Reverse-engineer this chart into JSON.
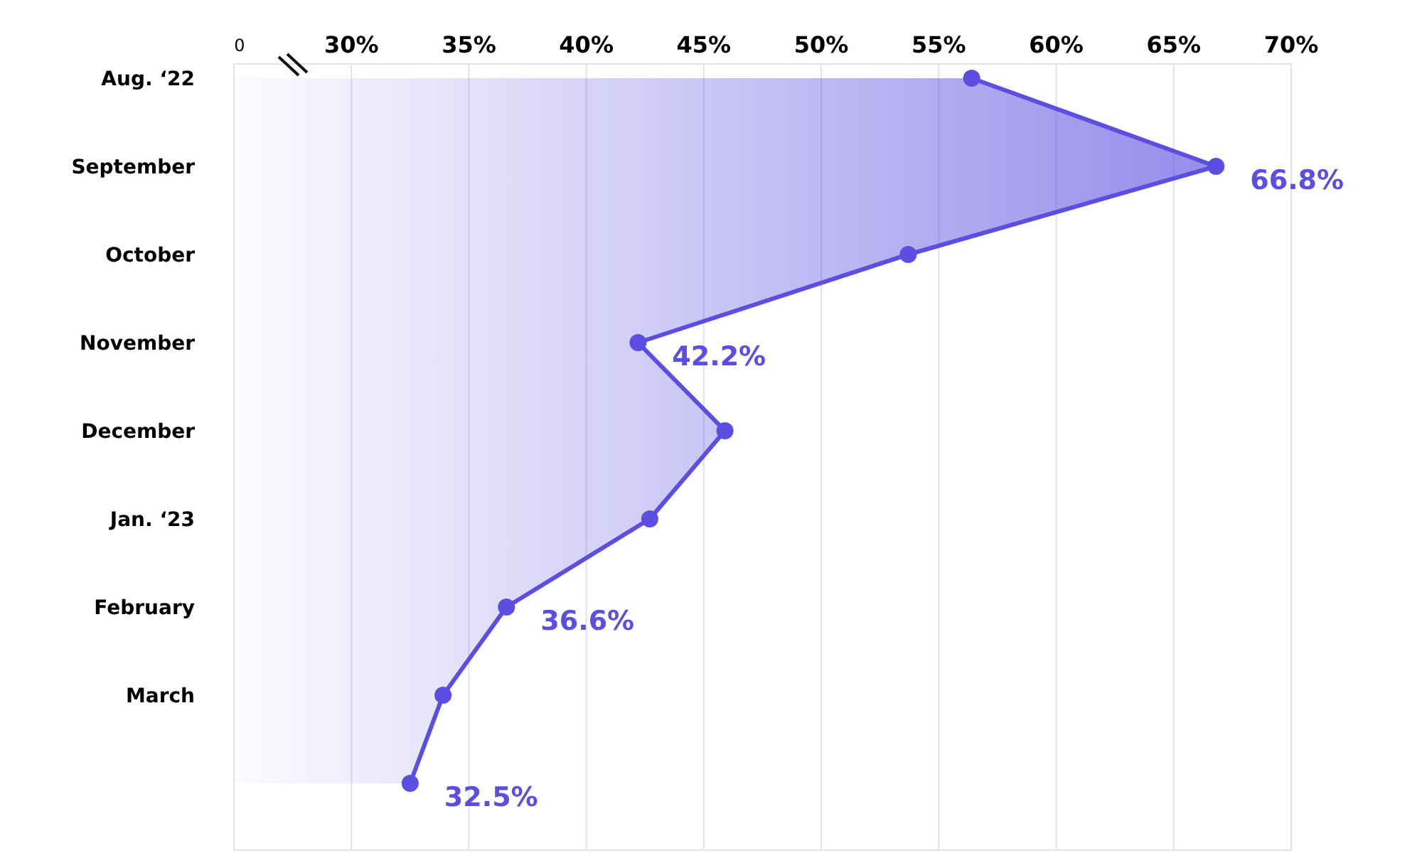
{
  "chart_data": {
    "type": "area",
    "orientation": "horizontal",
    "categories": [
      "Aug. ‘22",
      "September",
      "October",
      "November",
      "December",
      "Jan. ‘23",
      "February",
      "March",
      null
    ],
    "series": [
      {
        "color": "#5b4ee0",
        "values": [
          56.4,
          66.8,
          53.7,
          42.2,
          45.9,
          42.7,
          36.6,
          33.9,
          32.5
        ],
        "value_labels": [
          null,
          "66.8%",
          null,
          "42.2%",
          null,
          null,
          "36.6%",
          null,
          "32.5%"
        ]
      }
    ],
    "xlim": [
      25,
      70
    ],
    "annotations": [
      "0"
    ],
    "xticks": [
      {
        "value": 25,
        "label": null
      },
      {
        "value": 30,
        "label": "30%"
      },
      {
        "value": 35,
        "label": "35%"
      },
      {
        "value": 40,
        "label": "40%"
      },
      {
        "value": 45,
        "label": "45%"
      },
      {
        "value": 50,
        "label": "50%"
      },
      {
        "value": 55,
        "label": "55%"
      },
      {
        "value": 60,
        "label": "60%"
      },
      {
        "value": 65,
        "label": "65%"
      },
      {
        "value": 70,
        "label": "70%"
      }
    ],
    "grid": "x",
    "marker": "circle"
  }
}
